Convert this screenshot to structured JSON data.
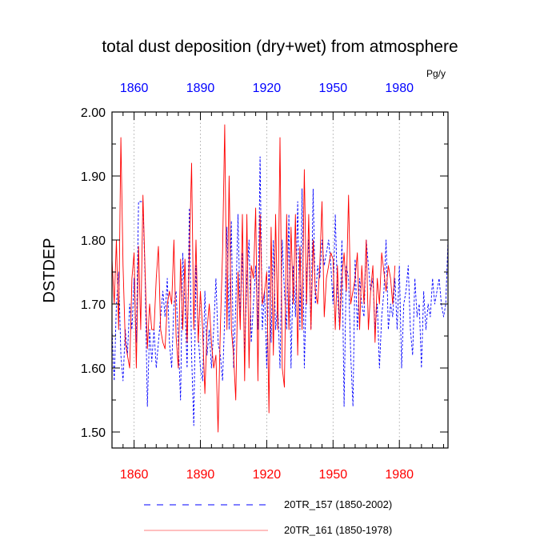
{
  "chart_data": {
    "type": "line",
    "title": "total dust deposition (dry+wet) from atmosphere",
    "units": "Pg/y",
    "ylabel": "DSTDEP",
    "xlabel": "",
    "xlim": [
      1850,
      2002
    ],
    "ylim": [
      1.475,
      2.0
    ],
    "yticks": [
      "1.50",
      "1.60",
      "1.70",
      "1.80",
      "1.90",
      "2.00"
    ],
    "ytick_values": [
      1.5,
      1.6,
      1.7,
      1.8,
      1.9,
      2.0
    ],
    "xtick_values": [
      1860,
      1890,
      1920,
      1950,
      1980
    ],
    "xticks_bottom": [
      "1860",
      "1890",
      "1920",
      "1950",
      "1980"
    ],
    "xticks_top": [
      "1860",
      "1890",
      "1920",
      "1950",
      "1980"
    ],
    "grid": "vertical dotted at x ticks",
    "series": [
      {
        "name": "20TR_157 (1850-2002)",
        "color": "#0000ff",
        "style": "dashed",
        "start_year": 1850,
        "values": [
          1.66,
          1.58,
          1.7,
          1.75,
          1.62,
          1.58,
          1.66,
          1.62,
          1.7,
          1.66,
          1.74,
          1.64,
          1.86,
          1.86,
          1.86,
          1.74,
          1.54,
          1.66,
          1.61,
          1.66,
          1.6,
          1.64,
          1.68,
          1.72,
          1.68,
          1.74,
          1.64,
          1.6,
          1.7,
          1.72,
          1.64,
          1.55,
          1.78,
          1.7,
          1.6,
          1.85,
          1.62,
          1.51,
          1.76,
          1.65,
          1.6,
          1.58,
          1.72,
          1.62,
          1.66,
          1.6,
          1.66,
          1.74,
          1.64,
          1.62,
          1.58,
          1.68,
          1.82,
          1.66,
          1.83,
          1.6,
          1.7,
          1.84,
          1.68,
          1.78,
          1.62,
          1.74,
          1.8,
          1.64,
          1.7,
          1.76,
          1.66,
          1.93,
          1.66,
          1.72,
          1.6,
          1.76,
          1.64,
          1.8,
          1.66,
          1.7,
          1.6,
          1.8,
          1.72,
          1.66,
          1.84,
          1.6,
          1.76,
          1.68,
          1.86,
          1.66,
          1.88,
          1.6,
          1.74,
          1.8,
          1.66,
          1.88,
          1.7,
          1.76,
          1.74,
          1.8,
          1.76,
          1.78,
          1.8,
          1.76,
          1.7,
          1.84,
          1.72,
          1.66,
          1.8,
          1.54,
          1.76,
          1.74,
          1.62,
          1.54,
          1.77,
          1.66,
          1.74,
          1.7,
          1.68,
          1.8,
          1.76,
          1.72,
          1.74,
          1.66,
          1.7,
          1.6,
          1.68,
          1.72,
          1.8,
          1.66,
          1.7,
          1.68,
          1.74,
          1.66,
          1.76,
          1.6,
          1.7,
          1.72,
          1.76,
          1.66,
          1.62,
          1.74,
          1.68,
          1.7,
          1.6,
          1.72,
          1.66,
          1.7,
          1.68,
          1.74,
          1.7,
          1.72,
          1.74,
          1.7,
          1.68,
          1.7,
          1.8
        ]
      },
      {
        "name": "20TR_161 (1850-1978)",
        "color": "#ff0000",
        "style": "solid",
        "start_year": 1850,
        "values": [
          1.77,
          1.7,
          1.8,
          1.66,
          1.96,
          1.76,
          1.64,
          1.62,
          1.6,
          1.74,
          1.78,
          1.6,
          1.79,
          1.66,
          1.87,
          1.75,
          1.63,
          1.7,
          1.66,
          1.66,
          1.74,
          1.79,
          1.66,
          1.64,
          1.63,
          1.7,
          1.72,
          1.7,
          1.8,
          1.65,
          1.6,
          1.77,
          1.66,
          1.77,
          1.64,
          1.78,
          1.92,
          1.66,
          1.8,
          1.64,
          1.72,
          1.66,
          1.56,
          1.66,
          1.7,
          1.64,
          1.6,
          1.62,
          1.5,
          1.66,
          1.78,
          1.98,
          1.66,
          1.9,
          1.66,
          1.62,
          1.55,
          1.75,
          1.66,
          1.84,
          1.58,
          1.84,
          1.6,
          1.76,
          1.74,
          1.85,
          1.58,
          1.84,
          1.7,
          1.72,
          1.75,
          1.53,
          1.82,
          1.62,
          1.84,
          1.66,
          1.96,
          1.6,
          1.57,
          1.84,
          1.66,
          1.82,
          1.7,
          1.84,
          1.62,
          1.79,
          1.66,
          1.91,
          1.7,
          1.84,
          1.66,
          1.8,
          1.72,
          1.7,
          1.76,
          1.86,
          1.68,
          1.74,
          1.76,
          1.78,
          1.77,
          1.66,
          1.76,
          1.66,
          1.74,
          1.78,
          1.72,
          1.87,
          1.7,
          1.72,
          1.74,
          1.78,
          1.66,
          1.76,
          1.7,
          1.8,
          1.66,
          1.72,
          1.76,
          1.64,
          1.74,
          1.7,
          1.78,
          1.75,
          1.72,
          1.76,
          1.74,
          1.7,
          1.76
        ]
      }
    ]
  }
}
